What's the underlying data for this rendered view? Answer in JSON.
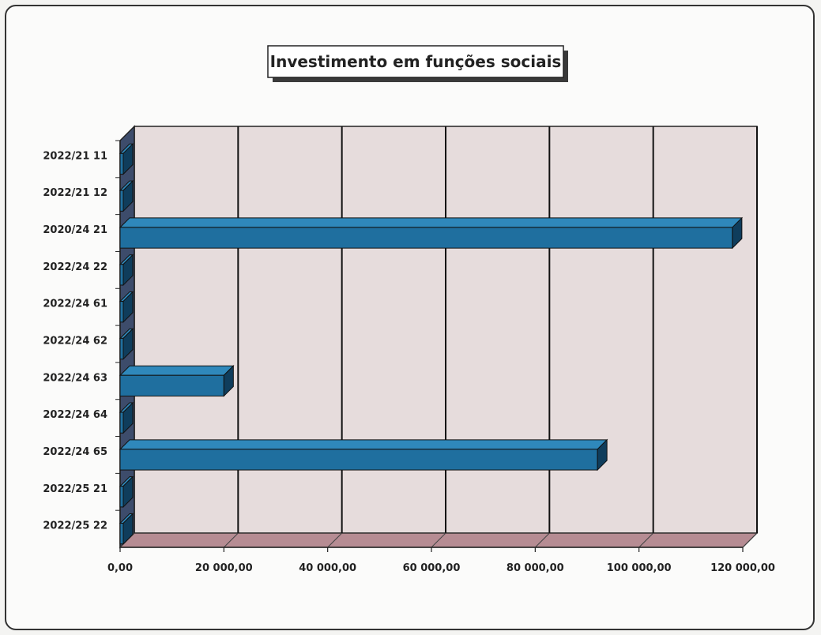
{
  "chart_data": {
    "type": "bar",
    "orientation": "horizontal",
    "title": "Investimento em funções sociais",
    "categories": [
      "2022/21 11",
      "2022/21 12",
      "2020/24 21",
      "2022/24 22",
      "2022/24 61",
      "2022/24 62",
      "2022/24 63",
      "2022/24 64",
      "2022/24 65",
      "2022/25 21",
      "2022/25 22"
    ],
    "values": [
      0,
      0,
      118000,
      0,
      0,
      0,
      20000,
      0,
      92000,
      0,
      0
    ],
    "xlim": [
      0,
      120000
    ],
    "xticks": [
      0,
      20000,
      40000,
      60000,
      80000,
      100000,
      120000
    ],
    "xtick_labels": [
      "0,00",
      "20 000,00",
      "40 000,00",
      "60 000,00",
      "80 000,00",
      "100 000,00",
      "120 000,00"
    ],
    "xlabel": "",
    "ylabel": "",
    "grid": true,
    "legend": "none",
    "colors": {
      "bar": "#1f6f9f",
      "bar_top": "#2f88bb",
      "bar_side": "#0f3d5c",
      "plot_wall": "#e6dcdc",
      "floor": "#b68c93",
      "gridline": "#111111"
    }
  }
}
